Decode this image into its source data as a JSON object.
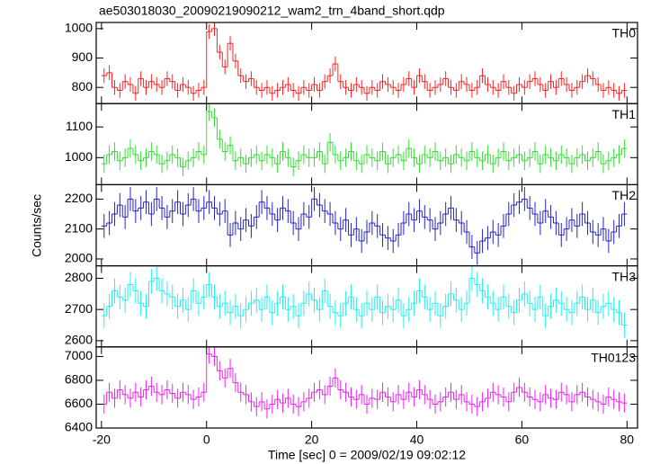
{
  "title": "ae503018030_20090219090212_wam2_trn_4band_short.qdp",
  "ylabel": "Counts/sec",
  "xlabel": "Time [sec] 0 = 2009/02/19 09:02:12",
  "chart_data": [
    {
      "type": "step",
      "label": "TH0",
      "color": "#ff2020",
      "error": 25,
      "xlim": [
        -21,
        82
      ],
      "xticks": [
        -20,
        0,
        20,
        40,
        60,
        80
      ],
      "ylim": [
        745,
        1021
      ],
      "yticks": [
        800,
        900,
        1000
      ],
      "x": [
        -19.5,
        -18.5,
        -17.5,
        -16.5,
        -15.5,
        -14.5,
        -13.5,
        -12.5,
        -11.5,
        -10.5,
        -9.5,
        -8.5,
        -7.5,
        -6.5,
        -5.5,
        -4.5,
        -3.5,
        -2.5,
        -1.5,
        -0.5,
        0.5,
        1.5,
        2.5,
        3.5,
        4.5,
        5.5,
        6.5,
        7.5,
        8.5,
        9.5,
        10.5,
        11.5,
        12.5,
        13.5,
        14.5,
        15.5,
        16.5,
        17.5,
        18.5,
        19.5,
        20.5,
        21.5,
        22.5,
        23.5,
        24.5,
        25.5,
        26.5,
        27.5,
        28.5,
        29.5,
        30.5,
        31.5,
        32.5,
        33.5,
        34.5,
        35.5,
        36.5,
        37.5,
        38.5,
        39.5,
        40.5,
        41.5,
        42.5,
        43.5,
        44.5,
        45.5,
        46.5,
        47.5,
        48.5,
        49.5,
        50.5,
        51.5,
        52.5,
        53.5,
        54.5,
        55.5,
        56.5,
        57.5,
        58.5,
        59.5,
        60.5,
        61.5,
        62.5,
        63.5,
        64.5,
        65.5,
        66.5,
        67.5,
        68.5,
        69.5,
        70.5,
        71.5,
        72.5,
        73.5,
        74.5,
        75.5,
        76.5,
        77.5,
        78.5,
        79.5
      ],
      "values": [
        840,
        850,
        800,
        790,
        820,
        810,
        780,
        830,
        800,
        820,
        810,
        800,
        830,
        820,
        790,
        810,
        800,
        780,
        790,
        800,
        990,
        1000,
        920,
        870,
        950,
        890,
        840,
        820,
        830,
        800,
        790,
        800,
        780,
        790,
        800,
        810,
        790,
        780,
        800,
        790,
        810,
        790,
        820,
        840,
        880,
        820,
        800,
        790,
        810,
        800,
        780,
        800,
        790,
        820,
        810,
        800,
        790,
        810,
        830,
        800,
        840,
        820,
        790,
        800,
        810,
        830,
        800,
        790,
        820,
        810,
        790,
        800,
        840,
        810,
        800,
        790,
        820,
        800,
        780,
        810,
        800,
        820,
        830,
        810,
        790,
        820,
        800,
        830,
        810,
        790,
        800,
        820,
        840,
        830,
        810,
        790,
        800,
        790,
        780,
        790
      ]
    },
    {
      "type": "step",
      "label": "TH1",
      "color": "#30e030",
      "error": 30,
      "xlim": [
        -21,
        82
      ],
      "xticks": [
        -20,
        0,
        20,
        40,
        60,
        80
      ],
      "ylim": [
        912,
        1176
      ],
      "yticks": [
        1000,
        1100
      ],
      "x": [
        -19.5,
        -18.5,
        -17.5,
        -16.5,
        -15.5,
        -14.5,
        -13.5,
        -12.5,
        -11.5,
        -10.5,
        -9.5,
        -8.5,
        -7.5,
        -6.5,
        -5.5,
        -4.5,
        -3.5,
        -2.5,
        -1.5,
        -0.5,
        0.5,
        1.5,
        2.5,
        3.5,
        4.5,
        5.5,
        6.5,
        7.5,
        8.5,
        9.5,
        10.5,
        11.5,
        12.5,
        13.5,
        14.5,
        15.5,
        16.5,
        17.5,
        18.5,
        19.5,
        20.5,
        21.5,
        22.5,
        23.5,
        24.5,
        25.5,
        26.5,
        27.5,
        28.5,
        29.5,
        30.5,
        31.5,
        32.5,
        33.5,
        34.5,
        35.5,
        36.5,
        37.5,
        38.5,
        39.5,
        40.5,
        41.5,
        42.5,
        43.5,
        44.5,
        45.5,
        46.5,
        47.5,
        48.5,
        49.5,
        50.5,
        51.5,
        52.5,
        53.5,
        54.5,
        55.5,
        56.5,
        57.5,
        58.5,
        59.5,
        60.5,
        61.5,
        62.5,
        63.5,
        64.5,
        65.5,
        66.5,
        67.5,
        68.5,
        69.5,
        70.5,
        71.5,
        72.5,
        73.5,
        74.5,
        75.5,
        76.5,
        77.5,
        78.5,
        79.5
      ],
      "values": [
        980,
        1010,
        1020,
        990,
        1000,
        1030,
        1010,
        990,
        1000,
        1020,
        1010,
        980,
        990,
        1010,
        1000,
        970,
        990,
        1000,
        1020,
        1010,
        1150,
        1130,
        1060,
        1020,
        1040,
        990,
        1000,
        980,
        1000,
        1010,
        990,
        1010,
        1000,
        980,
        1020,
        1000,
        970,
        990,
        1010,
        1000,
        1000,
        1020,
        980,
        1050,
        1010,
        990,
        1000,
        1020,
        990,
        980,
        1010,
        1000,
        990,
        1020,
        980,
        1000,
        1010,
        990,
        1030,
        1000,
        980,
        1010,
        1000,
        1020,
        990,
        1000,
        980,
        1010,
        1000,
        990,
        1020,
        1000,
        990,
        1010,
        980,
        1000,
        1020,
        990,
        1000,
        1010,
        990,
        1000,
        1020,
        980,
        1010,
        1000,
        990,
        1010,
        1000,
        980,
        1000,
        1010,
        990,
        1000,
        1020,
        980,
        990,
        1000,
        1010,
        1030
      ]
    },
    {
      "type": "step",
      "label": "TH2",
      "color": "#2424c8",
      "error": 40,
      "xlim": [
        -21,
        82
      ],
      "xticks": [
        -20,
        0,
        20,
        40,
        60,
        80
      ],
      "ylim": [
        1977,
        2248
      ],
      "yticks": [
        2000,
        2100,
        2200
      ],
      "x": [
        -19.5,
        -18.5,
        -17.5,
        -16.5,
        -15.5,
        -14.5,
        -13.5,
        -12.5,
        -11.5,
        -10.5,
        -9.5,
        -8.5,
        -7.5,
        -6.5,
        -5.5,
        -4.5,
        -3.5,
        -2.5,
        -1.5,
        -0.5,
        0.5,
        1.5,
        2.5,
        3.5,
        4.5,
        5.5,
        6.5,
        7.5,
        8.5,
        9.5,
        10.5,
        11.5,
        12.5,
        13.5,
        14.5,
        15.5,
        16.5,
        17.5,
        18.5,
        19.5,
        20.5,
        21.5,
        22.5,
        23.5,
        24.5,
        25.5,
        26.5,
        27.5,
        28.5,
        29.5,
        30.5,
        31.5,
        32.5,
        33.5,
        34.5,
        35.5,
        36.5,
        37.5,
        38.5,
        39.5,
        40.5,
        41.5,
        42.5,
        43.5,
        44.5,
        45.5,
        46.5,
        47.5,
        48.5,
        49.5,
        50.5,
        51.5,
        52.5,
        53.5,
        54.5,
        55.5,
        56.5,
        57.5,
        58.5,
        59.5,
        60.5,
        61.5,
        62.5,
        63.5,
        64.5,
        65.5,
        66.5,
        67.5,
        68.5,
        69.5,
        70.5,
        71.5,
        72.5,
        73.5,
        74.5,
        75.5,
        76.5,
        77.5,
        78.5,
        79.5
      ],
      "values": [
        2110,
        2120,
        2150,
        2180,
        2140,
        2200,
        2160,
        2170,
        2190,
        2150,
        2200,
        2170,
        2140,
        2160,
        2190,
        2150,
        2180,
        2200,
        2160,
        2170,
        2190,
        2170,
        2150,
        2160,
        2080,
        2120,
        2100,
        2130,
        2110,
        2140,
        2190,
        2170,
        2150,
        2130,
        2170,
        2160,
        2120,
        2100,
        2150,
        2140,
        2200,
        2180,
        2160,
        2150,
        2120,
        2100,
        2130,
        2080,
        2100,
        2060,
        2090,
        2120,
        2110,
        2080,
        2070,
        2060,
        2080,
        2120,
        2150,
        2130,
        2160,
        2140,
        2130,
        2100,
        2120,
        2150,
        2170,
        2130,
        2120,
        2090,
        2040,
        2020,
        2060,
        2070,
        2090,
        2080,
        2110,
        2150,
        2180,
        2190,
        2200,
        2170,
        2150,
        2120,
        2160,
        2140,
        2120,
        2080,
        2100,
        2130,
        2110,
        2150,
        2120,
        2090,
        2080,
        2100,
        2060,
        2090,
        2110,
        2150
      ]
    },
    {
      "type": "step",
      "label": "TH3",
      "color": "#20f0f0",
      "error": 40,
      "xlim": [
        -21,
        82
      ],
      "xticks": [
        -20,
        0,
        20,
        40,
        60,
        80
      ],
      "ylim": [
        2580,
        2840
      ],
      "yticks": [
        2600,
        2700,
        2800
      ],
      "x": [
        -19.5,
        -18.5,
        -17.5,
        -16.5,
        -15.5,
        -14.5,
        -13.5,
        -12.5,
        -11.5,
        -10.5,
        -9.5,
        -8.5,
        -7.5,
        -6.5,
        -5.5,
        -4.5,
        -3.5,
        -2.5,
        -1.5,
        -0.5,
        0.5,
        1.5,
        2.5,
        3.5,
        4.5,
        5.5,
        6.5,
        7.5,
        8.5,
        9.5,
        10.5,
        11.5,
        12.5,
        13.5,
        14.5,
        15.5,
        16.5,
        17.5,
        18.5,
        19.5,
        20.5,
        21.5,
        22.5,
        23.5,
        24.5,
        25.5,
        26.5,
        27.5,
        28.5,
        29.5,
        30.5,
        31.5,
        32.5,
        33.5,
        34.5,
        35.5,
        36.5,
        37.5,
        38.5,
        39.5,
        40.5,
        41.5,
        42.5,
        43.5,
        44.5,
        45.5,
        46.5,
        47.5,
        48.5,
        49.5,
        50.5,
        51.5,
        52.5,
        53.5,
        54.5,
        55.5,
        56.5,
        57.5,
        58.5,
        59.5,
        60.5,
        61.5,
        62.5,
        63.5,
        64.5,
        65.5,
        66.5,
        67.5,
        68.5,
        69.5,
        70.5,
        71.5,
        72.5,
        73.5,
        74.5,
        75.5,
        76.5,
        77.5,
        78.5,
        79.5
      ],
      "values": [
        2680,
        2710,
        2760,
        2740,
        2730,
        2780,
        2760,
        2720,
        2710,
        2790,
        2800,
        2760,
        2750,
        2740,
        2710,
        2730,
        2700,
        2760,
        2720,
        2740,
        2780,
        2740,
        2710,
        2720,
        2690,
        2710,
        2680,
        2700,
        2720,
        2730,
        2700,
        2740,
        2690,
        2720,
        2740,
        2700,
        2710,
        2680,
        2720,
        2750,
        2730,
        2700,
        2760,
        2710,
        2690,
        2680,
        2720,
        2740,
        2700,
        2680,
        2720,
        2700,
        2740,
        2690,
        2710,
        2700,
        2730,
        2680,
        2700,
        2720,
        2760,
        2740,
        2700,
        2720,
        2680,
        2710,
        2750,
        2730,
        2700,
        2720,
        2800,
        2780,
        2760,
        2740,
        2720,
        2700,
        2740,
        2710,
        2690,
        2730,
        2750,
        2720,
        2700,
        2740,
        2680,
        2710,
        2730,
        2720,
        2700,
        2690,
        2720,
        2740,
        2700,
        2730,
        2690,
        2710,
        2720,
        2700,
        2690,
        2650
      ]
    },
    {
      "type": "step",
      "label": "TH0123",
      "color": "#f020f0",
      "error": 80,
      "xlim": [
        -21,
        82
      ],
      "xticks": [
        -20,
        0,
        20,
        40,
        60,
        80
      ],
      "ylim": [
        6400,
        7080
      ],
      "yticks": [
        6400,
        6600,
        6800,
        7000
      ],
      "x": [
        -19.5,
        -18.5,
        -17.5,
        -16.5,
        -15.5,
        -14.5,
        -13.5,
        -12.5,
        -11.5,
        -10.5,
        -9.5,
        -8.5,
        -7.5,
        -6.5,
        -5.5,
        -4.5,
        -3.5,
        -2.5,
        -1.5,
        -0.5,
        0.5,
        1.5,
        2.5,
        3.5,
        4.5,
        5.5,
        6.5,
        7.5,
        8.5,
        9.5,
        10.5,
        11.5,
        12.5,
        13.5,
        14.5,
        15.5,
        16.5,
        17.5,
        18.5,
        19.5,
        20.5,
        21.5,
        22.5,
        23.5,
        24.5,
        25.5,
        26.5,
        27.5,
        28.5,
        29.5,
        30.5,
        31.5,
        32.5,
        33.5,
        34.5,
        35.5,
        36.5,
        37.5,
        38.5,
        39.5,
        40.5,
        41.5,
        42.5,
        43.5,
        44.5,
        45.5,
        46.5,
        47.5,
        48.5,
        49.5,
        50.5,
        51.5,
        52.5,
        53.5,
        54.5,
        55.5,
        56.5,
        57.5,
        58.5,
        59.5,
        60.5,
        61.5,
        62.5,
        63.5,
        64.5,
        65.5,
        66.5,
        67.5,
        68.5,
        69.5,
        70.5,
        71.5,
        72.5,
        73.5,
        74.5,
        75.5,
        76.5,
        77.5,
        78.5,
        79.5
      ],
      "values": [
        6600,
        6700,
        6650,
        6720,
        6680,
        6650,
        6700,
        6660,
        6720,
        6750,
        6700,
        6680,
        6720,
        6690,
        6650,
        6700,
        6680,
        6640,
        6660,
        6700,
        7020,
        7000,
        6880,
        6820,
        6900,
        6780,
        6700,
        6680,
        6620,
        6580,
        6620,
        6560,
        6600,
        6640,
        6610,
        6650,
        6600,
        6580,
        6620,
        6650,
        6700,
        6720,
        6680,
        6750,
        6820,
        6720,
        6700,
        6660,
        6640,
        6680,
        6600,
        6650,
        6640,
        6700,
        6660,
        6620,
        6680,
        6640,
        6700,
        6660,
        6720,
        6680,
        6640,
        6600,
        6620,
        6660,
        6700,
        6640,
        6680,
        6620,
        6600,
        6580,
        6620,
        6650,
        6700,
        6680,
        6660,
        6620,
        6700,
        6740,
        6700,
        6660,
        6640,
        6620,
        6680,
        6650,
        6640,
        6700,
        6680,
        6620,
        6680,
        6700,
        6660,
        6640,
        6620,
        6600,
        6660,
        6640,
        6620,
        6610
      ]
    }
  ]
}
